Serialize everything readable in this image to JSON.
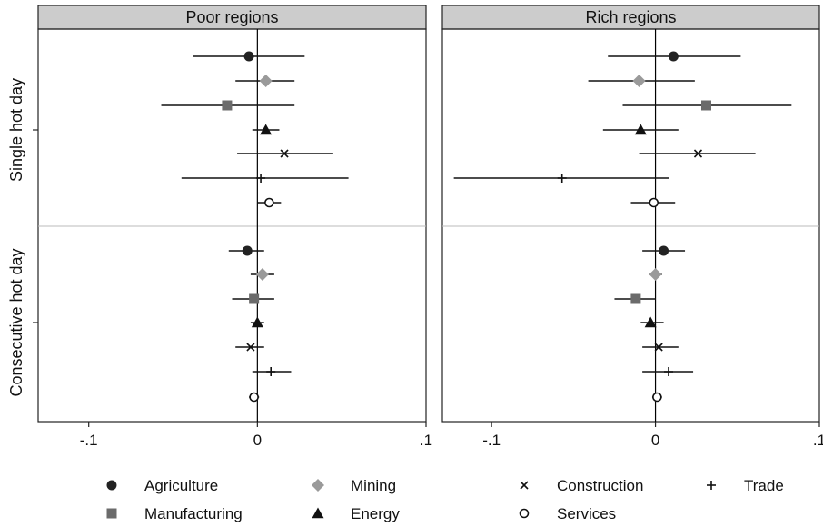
{
  "chart_data": {
    "type": "scatter",
    "subtype": "coefficient-plot-with-confidence-intervals",
    "panels": [
      {
        "title": "Poor regions",
        "xlim": [
          -0.13,
          0.1
        ],
        "xticks": [
          {
            "value": -0.1,
            "label": "-.1"
          },
          {
            "value": 0,
            "label": "0"
          },
          {
            "value": 0.1,
            "label": ".1"
          }
        ],
        "zero_line": true,
        "groups": [
          {
            "label": "Single hot day",
            "points": [
              {
                "sector": "Agriculture",
                "estimate": -0.005,
                "ci": [
                  -0.038,
                  0.028
                ]
              },
              {
                "sector": "Mining",
                "estimate": 0.005,
                "ci": [
                  -0.013,
                  0.022
                ]
              },
              {
                "sector": "Manufacturing",
                "estimate": -0.018,
                "ci": [
                  -0.057,
                  0.022
                ]
              },
              {
                "sector": "Energy",
                "estimate": 0.005,
                "ci": [
                  -0.003,
                  0.013
                ]
              },
              {
                "sector": "Construction",
                "estimate": 0.016,
                "ci": [
                  -0.012,
                  0.045
                ]
              },
              {
                "sector": "Trade",
                "estimate": 0.002,
                "ci": [
                  -0.045,
                  0.054
                ]
              },
              {
                "sector": "Services",
                "estimate": 0.007,
                "ci": [
                  0.0,
                  0.014
                ]
              }
            ]
          },
          {
            "label": "Consecutive hot day",
            "points": [
              {
                "sector": "Agriculture",
                "estimate": -0.006,
                "ci": [
                  -0.017,
                  0.004
                ]
              },
              {
                "sector": "Mining",
                "estimate": 0.003,
                "ci": [
                  -0.004,
                  0.01
                ]
              },
              {
                "sector": "Manufacturing",
                "estimate": -0.002,
                "ci": [
                  -0.015,
                  0.01
                ]
              },
              {
                "sector": "Energy",
                "estimate": 0.0,
                "ci": [
                  -0.004,
                  0.004
                ]
              },
              {
                "sector": "Construction",
                "estimate": -0.004,
                "ci": [
                  -0.013,
                  0.004
                ]
              },
              {
                "sector": "Trade",
                "estimate": 0.008,
                "ci": [
                  -0.003,
                  0.02
                ]
              },
              {
                "sector": "Services",
                "estimate": -0.002,
                "ci": [
                  -0.005,
                  0.001
                ]
              }
            ]
          }
        ]
      },
      {
        "title": "Rich regions",
        "xlim": [
          -0.13,
          0.1
        ],
        "xticks": [
          {
            "value": -0.1,
            "label": "-.1"
          },
          {
            "value": 0,
            "label": "0"
          },
          {
            "value": 0.1,
            "label": ".1"
          }
        ],
        "zero_line": true,
        "groups": [
          {
            "label": "Single hot day",
            "points": [
              {
                "sector": "Agriculture",
                "estimate": 0.011,
                "ci": [
                  -0.029,
                  0.052
                ]
              },
              {
                "sector": "Mining",
                "estimate": -0.01,
                "ci": [
                  -0.041,
                  0.024
                ]
              },
              {
                "sector": "Manufacturing",
                "estimate": 0.031,
                "ci": [
                  -0.02,
                  0.083
                ]
              },
              {
                "sector": "Energy",
                "estimate": -0.009,
                "ci": [
                  -0.032,
                  0.014
                ]
              },
              {
                "sector": "Construction",
                "estimate": 0.026,
                "ci": [
                  -0.01,
                  0.061
                ]
              },
              {
                "sector": "Trade",
                "estimate": -0.057,
                "ci": [
                  -0.123,
                  0.008
                ]
              },
              {
                "sector": "Services",
                "estimate": -0.001,
                "ci": [
                  -0.015,
                  0.012
                ]
              }
            ]
          },
          {
            "label": "Consecutive hot day",
            "points": [
              {
                "sector": "Agriculture",
                "estimate": 0.005,
                "ci": [
                  -0.008,
                  0.018
                ]
              },
              {
                "sector": "Mining",
                "estimate": 0.0,
                "ci": [
                  -0.004,
                  0.004
                ]
              },
              {
                "sector": "Manufacturing",
                "estimate": -0.012,
                "ci": [
                  -0.025,
                  0.0
                ]
              },
              {
                "sector": "Energy",
                "estimate": -0.003,
                "ci": [
                  -0.009,
                  0.005
                ]
              },
              {
                "sector": "Construction",
                "estimate": 0.002,
                "ci": [
                  -0.008,
                  0.014
                ]
              },
              {
                "sector": "Trade",
                "estimate": 0.008,
                "ci": [
                  -0.008,
                  0.023
                ]
              },
              {
                "sector": "Services",
                "estimate": 0.001,
                "ci": [
                  -0.002,
                  0.004
                ]
              }
            ]
          }
        ]
      }
    ],
    "legend": {
      "placement": "bottom",
      "entries": [
        {
          "name": "Agriculture",
          "marker": "filled-circle",
          "color": "#222222"
        },
        {
          "name": "Manufacturing",
          "marker": "filled-square",
          "color": "#6b6b6b"
        },
        {
          "name": "Mining",
          "marker": "filled-diamond",
          "color": "#9a9a9a"
        },
        {
          "name": "Energy",
          "marker": "filled-triangle",
          "color": "#111111"
        },
        {
          "name": "Construction",
          "marker": "x",
          "color": "#111111"
        },
        {
          "name": "Services",
          "marker": "hollow-circle",
          "color": "#111111"
        },
        {
          "name": "Trade",
          "marker": "plus",
          "color": "#111111"
        }
      ]
    },
    "colors": {
      "header_fill": "#cccccc",
      "frame": "#222222",
      "ci_line": "#111111",
      "group_divider": "#bbbbbb"
    }
  }
}
